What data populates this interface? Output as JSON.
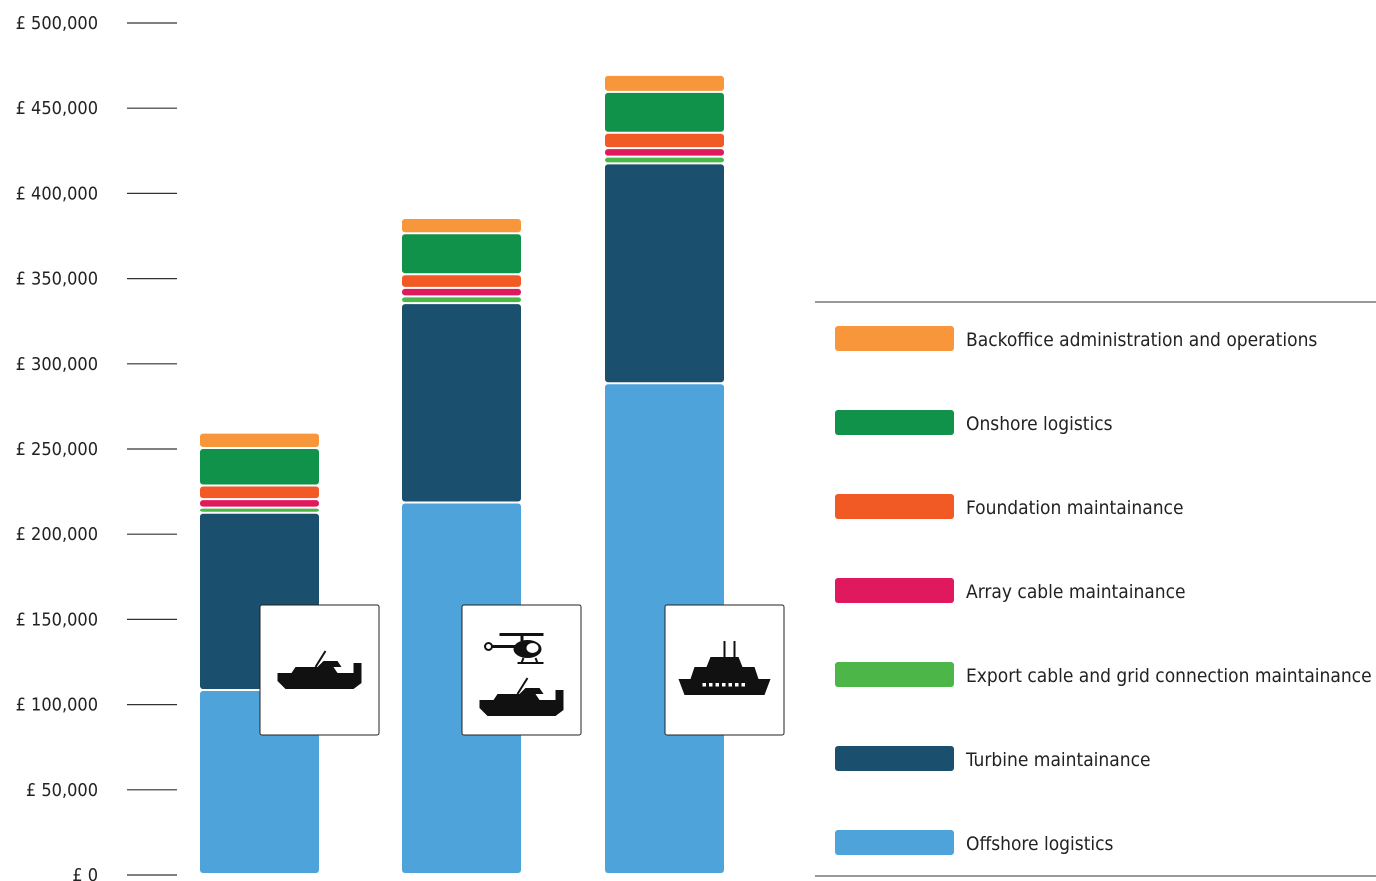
{
  "chart_data": {
    "type": "bar",
    "stacked": true,
    "title": "",
    "xlabel": "",
    "ylabel": "",
    "ylim": [
      0,
      500000
    ],
    "y_ticks": [
      0,
      50000,
      100000,
      150000,
      200000,
      250000,
      300000,
      350000,
      400000,
      450000,
      500000
    ],
    "y_tick_labels": [
      "£ 0",
      "£ 50,000",
      "£ 100,000",
      "£ 150,000",
      "£ 200,000",
      "£ 250,000",
      "£ 300,000",
      "£ 350,000",
      "£ 400,000",
      "£ 450,000",
      "£ 500,000"
    ],
    "grid": false,
    "legend_position": "right",
    "categories": [
      "",
      "",
      ""
    ],
    "category_icons": [
      [
        "crew-transfer-vessel-icon"
      ],
      [
        "helicopter-icon",
        "crew-transfer-vessel-icon"
      ],
      [
        "mothership-icon"
      ]
    ],
    "series": [
      {
        "name": "Offshore logistics",
        "color": "#4fa3db",
        "values": [
          108000,
          218000,
          288000
        ]
      },
      {
        "name": "Turbine maintainance",
        "color": "#1b4f6e",
        "values": [
          104000,
          117000,
          129000
        ]
      },
      {
        "name": "Export cable and grid connection maintainance",
        "color": "#4cb748",
        "values": [
          3000,
          4000,
          4000
        ]
      },
      {
        "name": "Array cable maintainance",
        "color": "#e0195f",
        "values": [
          5000,
          5000,
          5000
        ]
      },
      {
        "name": "Foundation maintainance",
        "color": "#f15a24",
        "values": [
          8000,
          8000,
          9000
        ]
      },
      {
        "name": "Onshore logistics",
        "color": "#10924a",
        "values": [
          22000,
          24000,
          24000
        ]
      },
      {
        "name": "Backoffice administration and operations",
        "color": "#f7963a",
        "values": [
          9000,
          9000,
          10000
        ]
      }
    ],
    "legend_order": [
      "Backoffice administration and operations",
      "Onshore logistics",
      "Foundation maintainance",
      "Array cable maintainance",
      "Export cable and grid connection maintainance",
      "Turbine maintainance",
      "Offshore logistics"
    ]
  }
}
